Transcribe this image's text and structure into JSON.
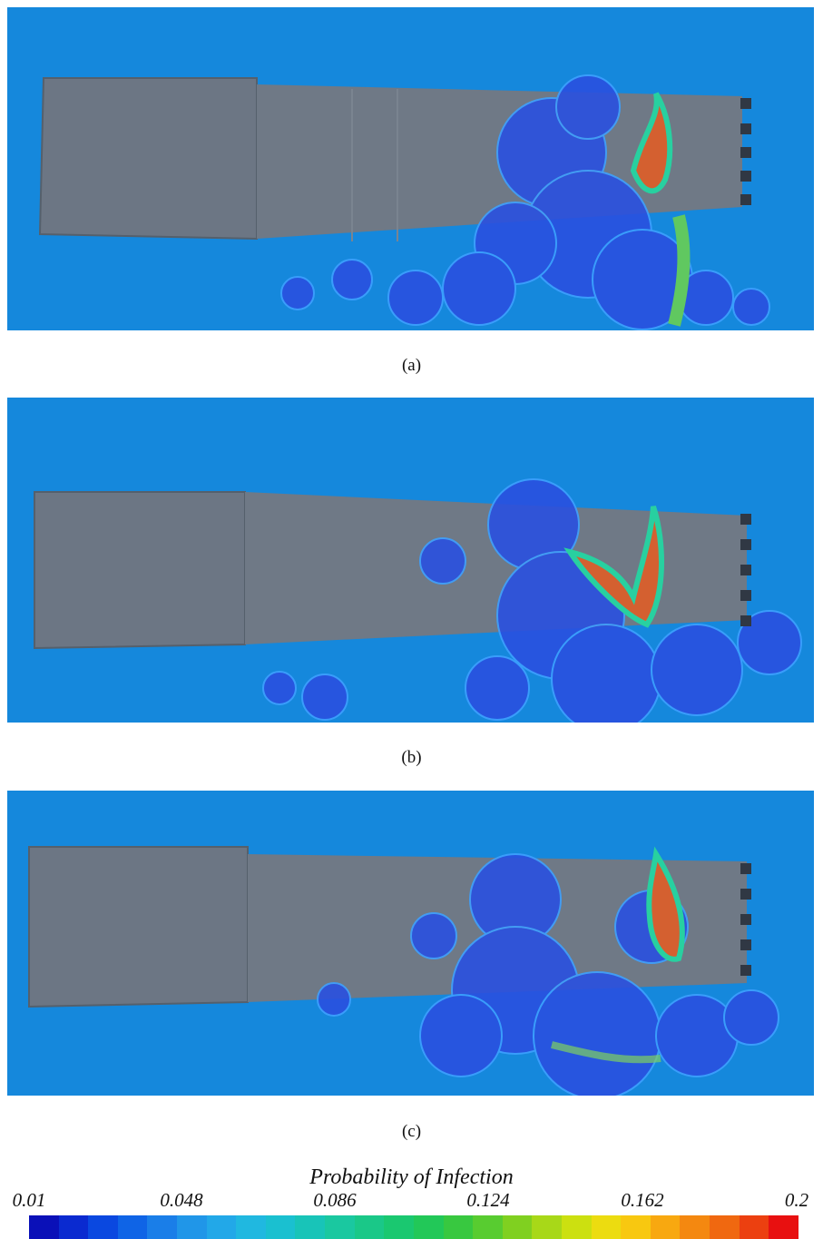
{
  "panels": [
    {
      "caption": "(a)"
    },
    {
      "caption": "(b)"
    },
    {
      "caption": "(c)"
    }
  ],
  "legend": {
    "title": "Probability of Infection",
    "ticks": [
      "0.01",
      "0.048",
      "0.086",
      "0.124",
      "0.162",
      "0.2"
    ],
    "colors": [
      "#0a10b8",
      "#0a2ad0",
      "#0a48e0",
      "#0f64e6",
      "#1a7ee8",
      "#2096e8",
      "#22a8e8",
      "#20b8e0",
      "#1ac0d0",
      "#18c4b8",
      "#1ac8a0",
      "#1ac888",
      "#1ac870",
      "#22c858",
      "#38c840",
      "#58cc30",
      "#80d020",
      "#a8d818",
      "#cce010",
      "#ecdc10",
      "#f8c810",
      "#f8a810",
      "#f48810",
      "#f06810",
      "#ec4010",
      "#e81010"
    ],
    "background": "#1588dc"
  }
}
